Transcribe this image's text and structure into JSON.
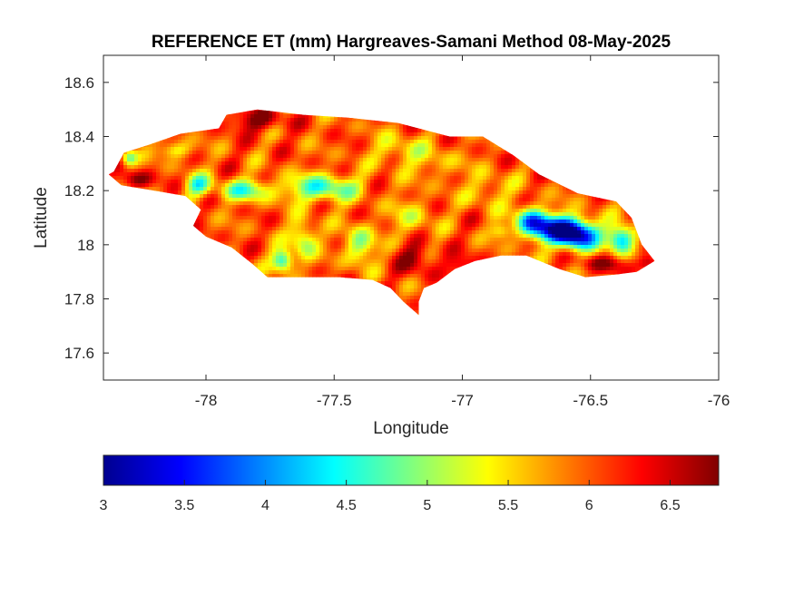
{
  "chart_data": {
    "type": "heatmap",
    "title": "REFERENCE ET (mm) Hargreaves-Samani Method  08-May-2025",
    "xlabel": "Longitude",
    "ylabel": "Latitude",
    "xlim": [
      -78.4,
      -76.0
    ],
    "ylim": [
      17.5,
      18.7
    ],
    "xticks": [
      -78,
      -77.5,
      -77,
      -76.5,
      -76
    ],
    "yticks": [
      17.6,
      17.8,
      18,
      18.2,
      18.4,
      18.6
    ],
    "grid": false,
    "colormap": "jet",
    "colorbar": {
      "location": "bottom",
      "range": [
        3.0,
        6.8
      ],
      "ticks": [
        3,
        3.5,
        4,
        4.5,
        5,
        5.5,
        6,
        6.5
      ]
    },
    "region_outline": [
      [
        -78.36,
        18.27
      ],
      [
        -78.32,
        18.34
      ],
      [
        -78.22,
        18.37
      ],
      [
        -78.1,
        18.41
      ],
      [
        -77.95,
        18.43
      ],
      [
        -77.92,
        18.48
      ],
      [
        -77.8,
        18.5
      ],
      [
        -77.62,
        18.48
      ],
      [
        -77.45,
        18.47
      ],
      [
        -77.25,
        18.45
      ],
      [
        -77.05,
        18.4
      ],
      [
        -76.92,
        18.4
      ],
      [
        -76.8,
        18.33
      ],
      [
        -76.7,
        18.26
      ],
      [
        -76.55,
        18.19
      ],
      [
        -76.4,
        18.16
      ],
      [
        -76.34,
        18.1
      ],
      [
        -76.3,
        18.0
      ],
      [
        -76.25,
        17.94
      ],
      [
        -76.32,
        17.9
      ],
      [
        -76.4,
        17.89
      ],
      [
        -76.52,
        17.88
      ],
      [
        -76.62,
        17.91
      ],
      [
        -76.75,
        17.96
      ],
      [
        -76.85,
        17.96
      ],
      [
        -76.95,
        17.94
      ],
      [
        -77.03,
        17.91
      ],
      [
        -77.1,
        17.86
      ],
      [
        -77.15,
        17.84
      ],
      [
        -77.17,
        17.79
      ],
      [
        -77.17,
        17.74
      ],
      [
        -77.23,
        17.79
      ],
      [
        -77.28,
        17.84
      ],
      [
        -77.35,
        17.87
      ],
      [
        -77.48,
        17.88
      ],
      [
        -77.62,
        17.88
      ],
      [
        -77.76,
        17.88
      ],
      [
        -77.82,
        17.93
      ],
      [
        -77.9,
        17.99
      ],
      [
        -78.0,
        18.03
      ],
      [
        -78.05,
        18.07
      ],
      [
        -78.02,
        18.13
      ],
      [
        -78.08,
        18.18
      ],
      [
        -78.2,
        18.2
      ],
      [
        -78.33,
        18.22
      ],
      [
        -78.38,
        18.26
      ]
    ],
    "value_field": {
      "base": 6.0,
      "features": [
        {
          "lon": -76.63,
          "lat": 18.06,
          "value": 3.6,
          "spread_lon": 0.11,
          "spread_lat": 0.05
        },
        {
          "lon": -76.55,
          "lat": 18.03,
          "value": 3.7,
          "spread_lon": 0.08,
          "spread_lat": 0.05
        },
        {
          "lon": -76.38,
          "lat": 18.02,
          "value": 4.0,
          "spread_lon": 0.05,
          "spread_lat": 0.05
        },
        {
          "lon": -76.73,
          "lat": 18.09,
          "value": 4.4,
          "spread_lon": 0.06,
          "spread_lat": 0.05
        },
        {
          "lon": -77.7,
          "lat": 17.94,
          "value": 4.3,
          "spread_lon": 0.04,
          "spread_lat": 0.04
        },
        {
          "lon": -77.62,
          "lat": 18.02,
          "value": 4.9,
          "spread_lon": 0.05,
          "spread_lat": 0.07
        },
        {
          "lon": -77.4,
          "lat": 18.0,
          "value": 4.9,
          "spread_lon": 0.06,
          "spread_lat": 0.07
        },
        {
          "lon": -77.55,
          "lat": 18.21,
          "value": 4.6,
          "spread_lon": 0.14,
          "spread_lat": 0.05
        },
        {
          "lon": -77.85,
          "lat": 18.2,
          "value": 4.8,
          "spread_lon": 0.1,
          "spread_lat": 0.04
        },
        {
          "lon": -78.03,
          "lat": 18.22,
          "value": 4.7,
          "spread_lon": 0.05,
          "spread_lat": 0.04
        },
        {
          "lon": -78.3,
          "lat": 18.32,
          "value": 4.8,
          "spread_lon": 0.03,
          "spread_lat": 0.03
        },
        {
          "lon": -78.12,
          "lat": 18.35,
          "value": 5.2,
          "spread_lon": 0.06,
          "spread_lat": 0.03
        },
        {
          "lon": -77.25,
          "lat": 18.35,
          "value": 5.4,
          "spread_lon": 0.1,
          "spread_lat": 0.06
        },
        {
          "lon": -76.9,
          "lat": 18.2,
          "value": 5.5,
          "spread_lon": 0.09,
          "spread_lat": 0.07
        },
        {
          "lon": -77.2,
          "lat": 18.1,
          "value": 5.4,
          "spread_lon": 0.08,
          "spread_lat": 0.07
        },
        {
          "lon": -76.85,
          "lat": 18.05,
          "value": 5.3,
          "spread_lon": 0.04,
          "spread_lat": 0.03
        },
        {
          "lon": -77.1,
          "lat": 18.3,
          "value": 5.6,
          "spread_lon": 0.1,
          "spread_lat": 0.06
        },
        {
          "lon": -77.8,
          "lat": 18.46,
          "value": 6.8,
          "spread_lon": 0.1,
          "spread_lat": 0.04
        },
        {
          "lon": -78.27,
          "lat": 18.24,
          "value": 6.8,
          "spread_lon": 0.06,
          "spread_lat": 0.03
        },
        {
          "lon": -77.18,
          "lat": 17.95,
          "value": 6.7,
          "spread_lon": 0.07,
          "spread_lat": 0.06
        },
        {
          "lon": -76.45,
          "lat": 17.93,
          "value": 6.6,
          "spread_lon": 0.1,
          "spread_lat": 0.03
        },
        {
          "lon": -76.27,
          "lat": 17.93,
          "value": 6.8,
          "spread_lon": 0.04,
          "spread_lat": 0.03
        },
        {
          "lon": -77.0,
          "lat": 17.92,
          "value": 6.6,
          "spread_lon": 0.06,
          "spread_lat": 0.04
        }
      ]
    }
  }
}
